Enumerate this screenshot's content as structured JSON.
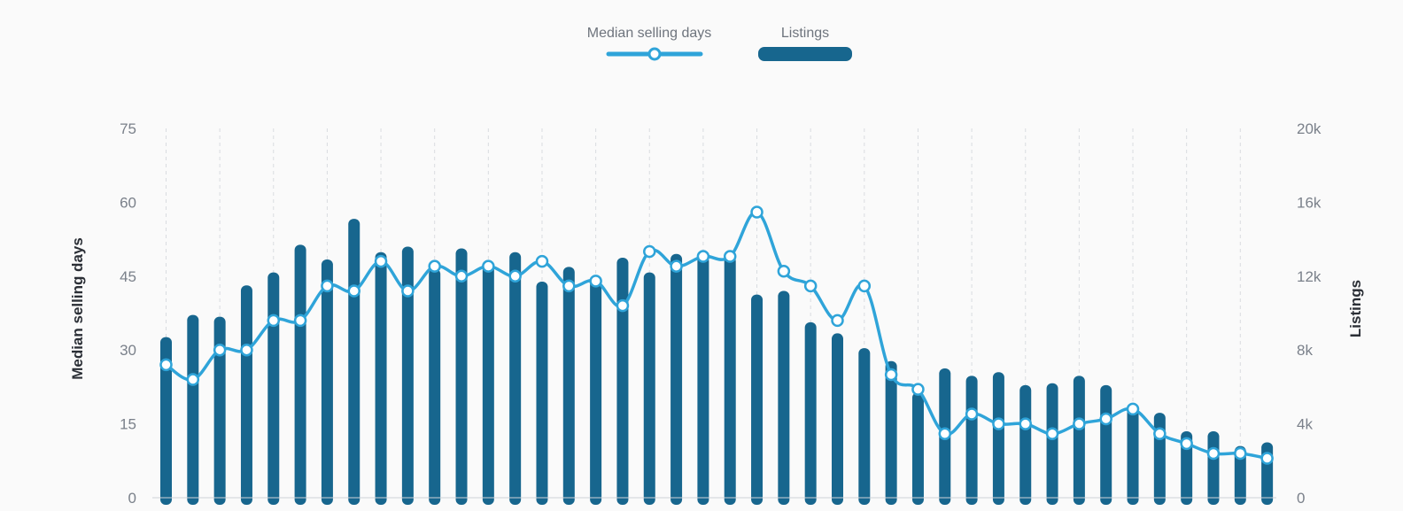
{
  "chart_data": {
    "type": "bar",
    "title": "",
    "legend": {
      "placement": "top-center"
    },
    "grid": {
      "vertical_dashed": true,
      "horizontal": false
    },
    "y_left": {
      "label": "Median selling days",
      "ylim": [
        0,
        75
      ],
      "ticks": [
        0,
        15,
        30,
        45,
        60,
        75
      ],
      "tick_labels": [
        "0",
        "15",
        "30",
        "45",
        "60",
        "75"
      ]
    },
    "y_right": {
      "label": "Listings",
      "ylim": [
        0,
        20000
      ],
      "ticks": [
        0,
        4000,
        8000,
        12000,
        16000,
        20000
      ],
      "tick_labels": [
        "0",
        "4k",
        "8k",
        "12k",
        "16k",
        "20k"
      ]
    },
    "series": [
      {
        "name": "Median selling days",
        "kind": "line",
        "axis": "left",
        "color": "#2fa4d9",
        "values": [
          27,
          24,
          30,
          30,
          36,
          36,
          43,
          42,
          48,
          42,
          47,
          45,
          47,
          45,
          48,
          43,
          44,
          39,
          50,
          47,
          49,
          49,
          58,
          46,
          43,
          36,
          43,
          25,
          22,
          13,
          17,
          15,
          15,
          13,
          15,
          16,
          18,
          13,
          11,
          9,
          9,
          8
        ]
      },
      {
        "name": "Listings",
        "kind": "bar",
        "axis": "right",
        "color": "#17668e",
        "values": [
          8700,
          9900,
          9800,
          11500,
          12200,
          13700,
          12900,
          15100,
          13300,
          13600,
          12400,
          13500,
          12800,
          13300,
          11700,
          12500,
          11900,
          13000,
          12200,
          13200,
          13100,
          13100,
          11000,
          11200,
          9500,
          8900,
          8100,
          7400,
          5700,
          7000,
          6600,
          6800,
          6100,
          6200,
          6600,
          6100,
          5000,
          4600,
          3600,
          3600,
          2800,
          3000
        ]
      }
    ]
  }
}
